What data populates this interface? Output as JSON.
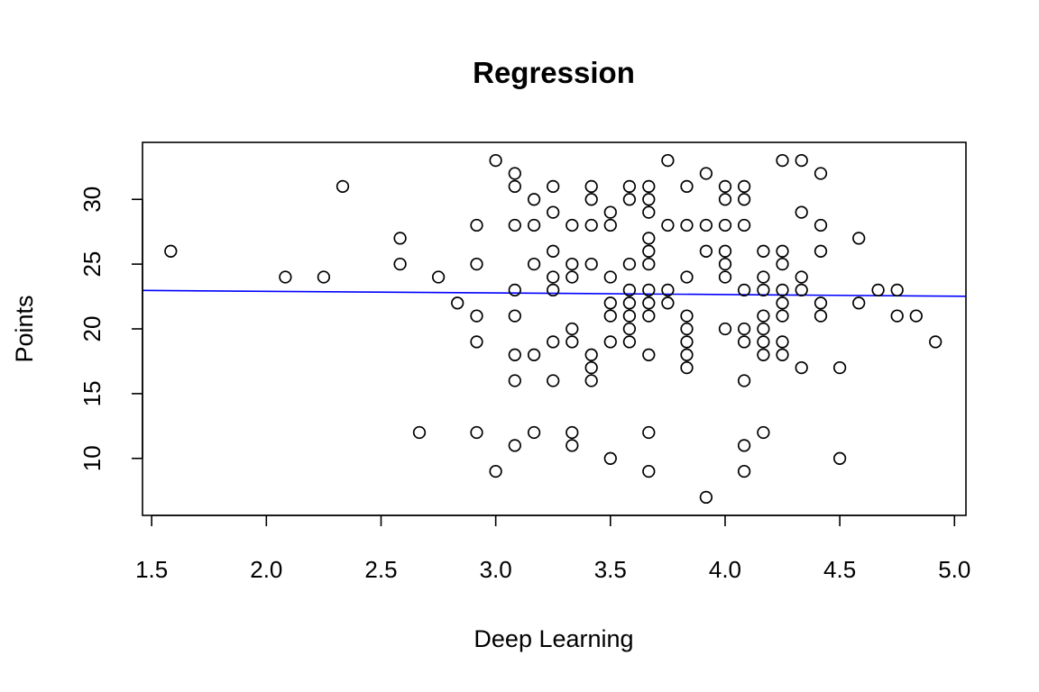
{
  "chart_data": {
    "type": "scatter",
    "title": "Regression",
    "xlabel": "Deep Learning",
    "ylabel": "Points",
    "xlim": [
      1.5,
      5.0
    ],
    "ylim": [
      5.6,
      34.4
    ],
    "x_ticks": [
      1.5,
      2.0,
      2.5,
      3.0,
      3.5,
      4.0,
      4.5,
      5.0
    ],
    "x_tick_labels": [
      "1.5",
      "2.0",
      "2.5",
      "3.0",
      "3.5",
      "4.0",
      "4.5",
      "5.0"
    ],
    "y_ticks": [
      10,
      15,
      20,
      25,
      30
    ],
    "y_tick_labels": [
      "10",
      "15",
      "20",
      "25",
      "30"
    ],
    "grid": false,
    "regression_line": {
      "color": "#0000ff",
      "intercept": 23.15,
      "slope": -0.125
    },
    "points": [
      [
        1.583,
        26
      ],
      [
        2.083,
        24
      ],
      [
        2.25,
        24
      ],
      [
        2.333,
        31
      ],
      [
        2.583,
        27
      ],
      [
        2.583,
        25
      ],
      [
        2.667,
        12
      ],
      [
        2.75,
        24
      ],
      [
        2.833,
        22
      ],
      [
        2.917,
        28
      ],
      [
        2.917,
        25
      ],
      [
        2.917,
        21
      ],
      [
        2.917,
        19
      ],
      [
        2.917,
        12
      ],
      [
        3.0,
        33
      ],
      [
        3.0,
        9
      ],
      [
        3.083,
        32
      ],
      [
        3.083,
        31
      ],
      [
        3.083,
        28
      ],
      [
        3.083,
        23
      ],
      [
        3.083,
        21
      ],
      [
        3.083,
        18
      ],
      [
        3.083,
        16
      ],
      [
        3.083,
        11
      ],
      [
        3.167,
        30
      ],
      [
        3.167,
        28
      ],
      [
        3.167,
        25
      ],
      [
        3.167,
        18
      ],
      [
        3.167,
        12
      ],
      [
        3.25,
        31
      ],
      [
        3.25,
        29
      ],
      [
        3.25,
        26
      ],
      [
        3.25,
        24
      ],
      [
        3.25,
        23
      ],
      [
        3.25,
        19
      ],
      [
        3.25,
        16
      ],
      [
        3.333,
        28
      ],
      [
        3.333,
        25
      ],
      [
        3.333,
        24
      ],
      [
        3.333,
        20
      ],
      [
        3.333,
        19
      ],
      [
        3.333,
        12
      ],
      [
        3.333,
        11
      ],
      [
        3.417,
        31
      ],
      [
        3.417,
        30
      ],
      [
        3.417,
        28
      ],
      [
        3.417,
        25
      ],
      [
        3.417,
        18
      ],
      [
        3.417,
        17
      ],
      [
        3.417,
        16
      ],
      [
        3.5,
        29
      ],
      [
        3.5,
        28
      ],
      [
        3.5,
        24
      ],
      [
        3.5,
        22
      ],
      [
        3.5,
        21
      ],
      [
        3.5,
        19
      ],
      [
        3.5,
        10
      ],
      [
        3.583,
        31
      ],
      [
        3.583,
        30
      ],
      [
        3.583,
        25
      ],
      [
        3.583,
        23
      ],
      [
        3.583,
        22
      ],
      [
        3.583,
        21
      ],
      [
        3.583,
        20
      ],
      [
        3.583,
        19
      ],
      [
        3.667,
        31
      ],
      [
        3.667,
        30
      ],
      [
        3.667,
        29
      ],
      [
        3.667,
        27
      ],
      [
        3.667,
        26
      ],
      [
        3.667,
        25
      ],
      [
        3.667,
        23
      ],
      [
        3.667,
        22
      ],
      [
        3.667,
        21
      ],
      [
        3.667,
        18
      ],
      [
        3.667,
        12
      ],
      [
        3.667,
        9
      ],
      [
        3.75,
        33
      ],
      [
        3.75,
        28
      ],
      [
        3.75,
        23
      ],
      [
        3.75,
        22
      ],
      [
        3.833,
        31
      ],
      [
        3.833,
        28
      ],
      [
        3.833,
        24
      ],
      [
        3.833,
        21
      ],
      [
        3.833,
        20
      ],
      [
        3.833,
        19
      ],
      [
        3.833,
        18
      ],
      [
        3.833,
        17
      ],
      [
        3.917,
        32
      ],
      [
        3.917,
        28
      ],
      [
        3.917,
        26
      ],
      [
        3.917,
        7
      ],
      [
        4.0,
        31
      ],
      [
        4.0,
        30
      ],
      [
        4.0,
        28
      ],
      [
        4.0,
        26
      ],
      [
        4.0,
        25
      ],
      [
        4.0,
        24
      ],
      [
        4.0,
        20
      ],
      [
        4.083,
        31
      ],
      [
        4.083,
        30
      ],
      [
        4.083,
        28
      ],
      [
        4.083,
        23
      ],
      [
        4.083,
        20
      ],
      [
        4.083,
        19
      ],
      [
        4.083,
        16
      ],
      [
        4.083,
        11
      ],
      [
        4.083,
        9
      ],
      [
        4.167,
        26
      ],
      [
        4.167,
        24
      ],
      [
        4.167,
        23
      ],
      [
        4.167,
        21
      ],
      [
        4.167,
        20
      ],
      [
        4.167,
        19
      ],
      [
        4.167,
        18
      ],
      [
        4.167,
        12
      ],
      [
        4.25,
        33
      ],
      [
        4.25,
        26
      ],
      [
        4.25,
        25
      ],
      [
        4.25,
        23
      ],
      [
        4.25,
        22
      ],
      [
        4.25,
        21
      ],
      [
        4.25,
        19
      ],
      [
        4.25,
        18
      ],
      [
        4.333,
        33
      ],
      [
        4.333,
        29
      ],
      [
        4.333,
        24
      ],
      [
        4.333,
        23
      ],
      [
        4.333,
        17
      ],
      [
        4.417,
        32
      ],
      [
        4.417,
        28
      ],
      [
        4.417,
        26
      ],
      [
        4.417,
        22
      ],
      [
        4.417,
        21
      ],
      [
        4.5,
        17
      ],
      [
        4.5,
        10
      ],
      [
        4.583,
        27
      ],
      [
        4.583,
        22
      ],
      [
        4.667,
        23
      ],
      [
        4.75,
        23
      ],
      [
        4.75,
        21
      ],
      [
        4.833,
        21
      ],
      [
        4.917,
        19
      ]
    ]
  }
}
